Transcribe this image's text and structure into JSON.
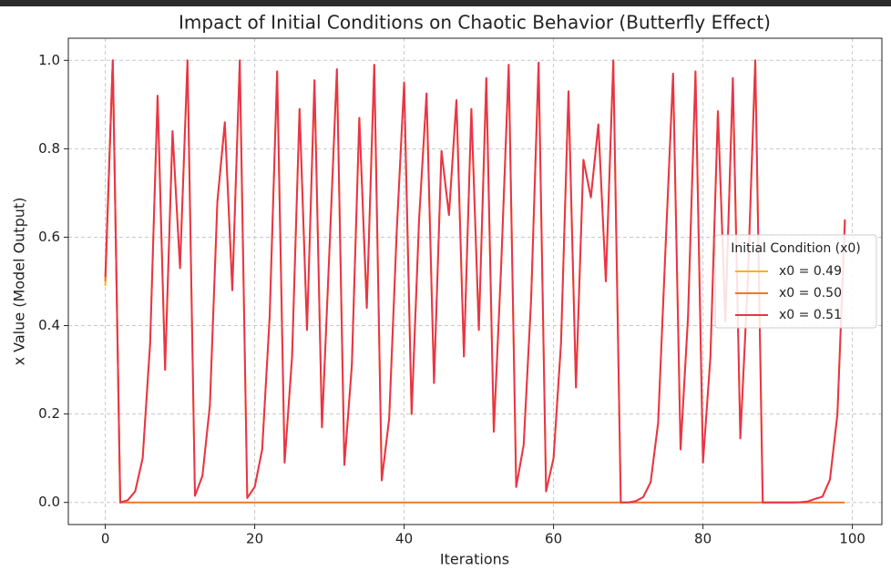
{
  "chart_data": {
    "type": "line",
    "title": "Impact of Initial Conditions on Chaotic Behavior (Butterfly Effect)",
    "x_label": "Iterations",
    "y_label": "x Value (Model Output)",
    "legend_title": "Initial Condition (x0)",
    "legend_position": "center right",
    "grid": true,
    "x": [
      0,
      1,
      2,
      3,
      4,
      5,
      6,
      7,
      8,
      9,
      10,
      11,
      12,
      13,
      14,
      15,
      16,
      17,
      18,
      19,
      20,
      21,
      22,
      23,
      24,
      25,
      26,
      27,
      28,
      29,
      30,
      31,
      32,
      33,
      34,
      35,
      36,
      37,
      38,
      39,
      40,
      41,
      42,
      43,
      44,
      45,
      46,
      47,
      48,
      49,
      50,
      51,
      52,
      53,
      54,
      55,
      56,
      57,
      58,
      59,
      60,
      61,
      62,
      63,
      64,
      65,
      66,
      67,
      68,
      69,
      70,
      71,
      72,
      73,
      74,
      75,
      76,
      77,
      78,
      79,
      80,
      81,
      82,
      83,
      84,
      85,
      86,
      87,
      88,
      89,
      90,
      91,
      92,
      93,
      94,
      95,
      96,
      97,
      98,
      99
    ],
    "xlim": [
      -4.95,
      103.95
    ],
    "xticks": [
      0,
      20,
      40,
      60,
      80,
      100
    ],
    "ylim": [
      -0.05,
      1.05
    ],
    "yticks": [
      {
        "value": 0,
        "label": "0.0"
      },
      {
        "value": 0.2,
        "label": "0.2"
      },
      {
        "value": 0.4,
        "label": "0.4"
      },
      {
        "value": 0.6,
        "label": "0.6"
      },
      {
        "value": 0.8,
        "label": "0.8"
      },
      {
        "value": 1,
        "label": "1.0"
      }
    ],
    "series": [
      {
        "name": "x0 = 0.49",
        "color": "#ffb000",
        "values": [
          0.49,
          1.0,
          0.0,
          0.005,
          0.025,
          0.1,
          0.36,
          0.92,
          0.3,
          0.84,
          0.53,
          1.0,
          0.015,
          0.06,
          0.22,
          0.68,
          0.86,
          0.48,
          1.0,
          0.01,
          0.035,
          0.12,
          0.42,
          0.975,
          0.09,
          0.33,
          0.89,
          0.39,
          0.955,
          0.17,
          0.57,
          0.98,
          0.085,
          0.31,
          0.87,
          0.44,
          0.99,
          0.05,
          0.19,
          0.61,
          0.95,
          0.2,
          0.64,
          0.925,
          0.27,
          0.795,
          0.65,
          0.91,
          0.33,
          0.89,
          0.39,
          0.96,
          0.16,
          0.54,
          0.99,
          0.035,
          0.13,
          0.46,
          0.995,
          0.025,
          0.1,
          0.36,
          0.93,
          0.26,
          0.775,
          0.69,
          0.855,
          0.5,
          1.0,
          0.0,
          0.0,
          0.003,
          0.012,
          0.046,
          0.18,
          0.58,
          0.97,
          0.12,
          0.42,
          0.975,
          0.09,
          0.33,
          0.885,
          0.41,
          0.96,
          0.145,
          0.5,
          1.0,
          0.0,
          0.0,
          0.0,
          0.0,
          0.0,
          0.0005,
          0.002,
          0.008,
          0.013,
          0.052,
          0.2,
          0.64
        ]
      },
      {
        "name": "x0 = 0.50",
        "color": "#f07828",
        "values": [
          0.5,
          1.0,
          0,
          0,
          0,
          0,
          0,
          0,
          0,
          0,
          0,
          0,
          0,
          0,
          0,
          0,
          0,
          0,
          0,
          0,
          0,
          0,
          0,
          0,
          0,
          0,
          0,
          0,
          0,
          0,
          0,
          0,
          0,
          0,
          0,
          0,
          0,
          0,
          0,
          0,
          0,
          0,
          0,
          0,
          0,
          0,
          0,
          0,
          0,
          0,
          0,
          0,
          0,
          0,
          0,
          0,
          0,
          0,
          0,
          0,
          0,
          0,
          0,
          0,
          0,
          0,
          0,
          0,
          0,
          0,
          0,
          0,
          0,
          0,
          0,
          0,
          0,
          0,
          0,
          0,
          0,
          0,
          0,
          0,
          0,
          0,
          0,
          0,
          0,
          0,
          0,
          0,
          0,
          0,
          0,
          0,
          0,
          0,
          0,
          0
        ]
      },
      {
        "name": "x0 = 0.51",
        "color": "#e8344c",
        "values": [
          0.51,
          1.0,
          0.0,
          0.005,
          0.025,
          0.1,
          0.36,
          0.92,
          0.3,
          0.84,
          0.53,
          1.0,
          0.015,
          0.06,
          0.22,
          0.68,
          0.86,
          0.48,
          1.0,
          0.01,
          0.035,
          0.12,
          0.42,
          0.975,
          0.09,
          0.33,
          0.89,
          0.39,
          0.955,
          0.17,
          0.57,
          0.98,
          0.085,
          0.31,
          0.87,
          0.44,
          0.99,
          0.05,
          0.19,
          0.61,
          0.95,
          0.2,
          0.64,
          0.925,
          0.27,
          0.795,
          0.65,
          0.91,
          0.33,
          0.89,
          0.39,
          0.96,
          0.16,
          0.54,
          0.99,
          0.035,
          0.13,
          0.46,
          0.995,
          0.025,
          0.1,
          0.36,
          0.93,
          0.26,
          0.775,
          0.69,
          0.855,
          0.5,
          1.0,
          0.0,
          0.0,
          0.003,
          0.012,
          0.046,
          0.18,
          0.58,
          0.97,
          0.12,
          0.42,
          0.975,
          0.09,
          0.33,
          0.885,
          0.41,
          0.96,
          0.145,
          0.5,
          1.0,
          0.0,
          0.0,
          0.0,
          0.0,
          0.0,
          0.0005,
          0.002,
          0.008,
          0.013,
          0.052,
          0.2,
          0.64
        ]
      }
    ]
  }
}
